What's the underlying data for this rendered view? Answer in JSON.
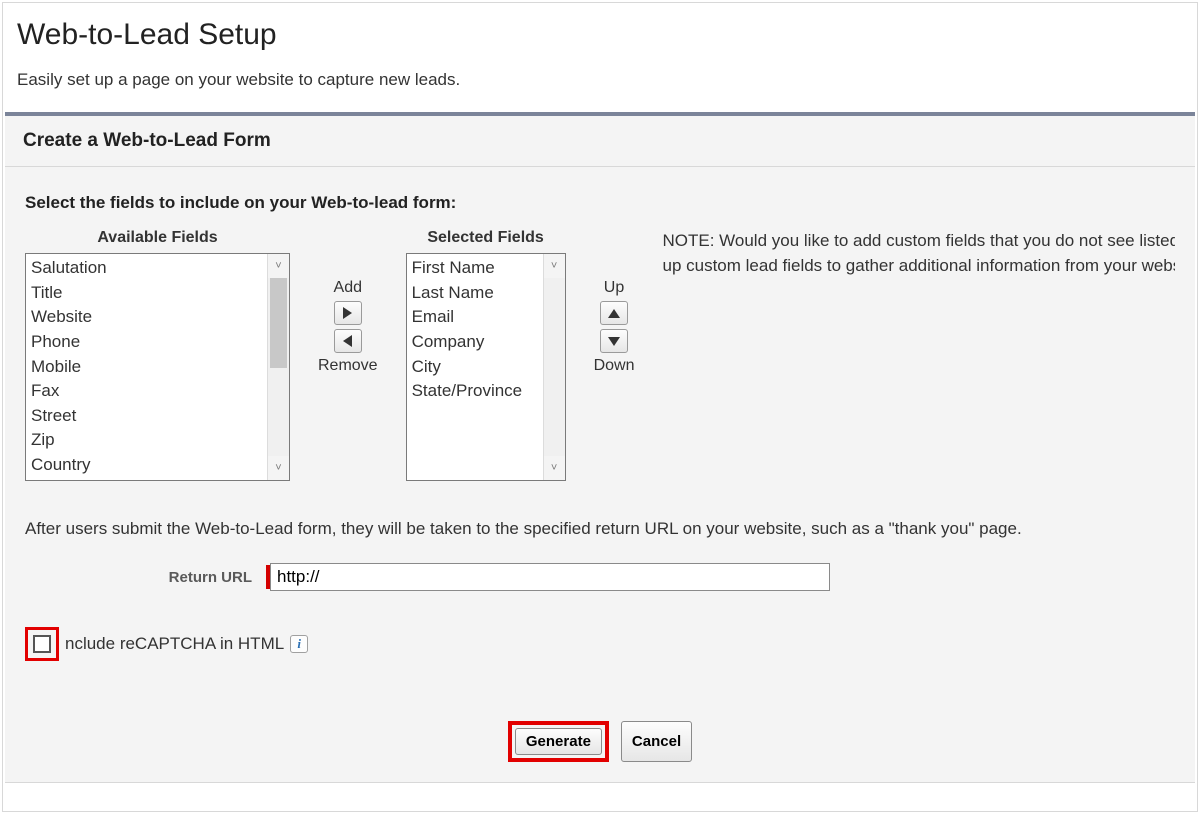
{
  "colors": {
    "panel_accent": "#7b8499",
    "highlight": "#e20000",
    "required_bar": "#d40000",
    "text": "#333333",
    "border": "#d8d8d8"
  },
  "page": {
    "title": "Web-to-Lead Setup",
    "description": "Easily set up a page on your website to capture new leads."
  },
  "panel": {
    "header": "Create a Web-to-Lead Form",
    "select_instruction": "Select the fields to include on your Web-to-lead form:",
    "available_title": "Available Fields",
    "selected_title": "Selected Fields",
    "available_fields": [
      "Salutation",
      "Title",
      "Website",
      "Phone",
      "Mobile",
      "Fax",
      "Street",
      "Zip",
      "Country"
    ],
    "selected_fields": [
      "First Name",
      "Last Name",
      "Email",
      "Company",
      "City",
      "State/Province"
    ],
    "controls": {
      "add": "Add",
      "remove": "Remove",
      "up": "Up",
      "down": "Down"
    },
    "note_line1": "NOTE: Would you like to add custom fields that you do not see listed u",
    "note_line2": "up custom lead fields to gather additional information from your website",
    "after_submit": "After users submit the Web-to-Lead form, they will be taken to the specified return URL on your website, such as a \"thank you\" page.",
    "return_label": "Return URL",
    "return_value": "http://",
    "recaptcha_label": "nclude reCAPTCHA in HTML",
    "recaptcha_checked": false,
    "buttons": {
      "generate": "Generate",
      "cancel": "Cancel"
    }
  }
}
